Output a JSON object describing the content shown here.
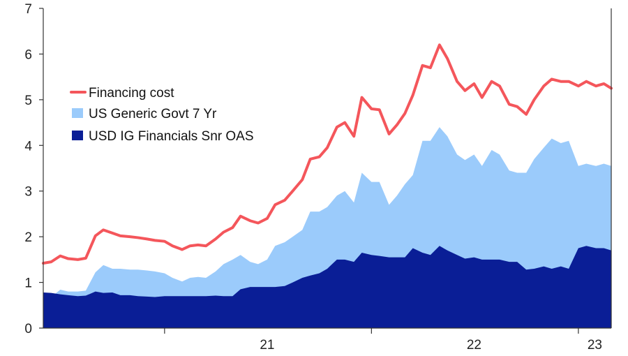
{
  "chart_data": {
    "type": "area",
    "title": "",
    "xlabel": "",
    "ylabel": "",
    "ylim": [
      0,
      7
    ],
    "xlim": [
      "2020-06-01",
      "2023-02-28"
    ],
    "y_ticks": [
      "0",
      "1",
      "2",
      "3",
      "4",
      "5",
      "6",
      "7"
    ],
    "x_ticks": [
      {
        "label": "21",
        "date": "2021-01-01"
      },
      {
        "label": "22",
        "date": "2022-01-01"
      },
      {
        "label": "23",
        "date": "2023-01-01"
      }
    ],
    "grid": false,
    "legend_position": "upper-left",
    "x": [
      "2020-06-01",
      "2020-06-15",
      "2020-07-01",
      "2020-07-15",
      "2020-08-01",
      "2020-08-15",
      "2020-09-01",
      "2020-09-15",
      "2020-10-01",
      "2020-10-15",
      "2020-11-01",
      "2020-11-15",
      "2020-12-01",
      "2020-12-15",
      "2021-01-01",
      "2021-01-15",
      "2021-02-01",
      "2021-02-15",
      "2021-03-01",
      "2021-03-15",
      "2021-04-01",
      "2021-04-15",
      "2021-05-01",
      "2021-05-15",
      "2021-06-01",
      "2021-06-15",
      "2021-07-01",
      "2021-07-15",
      "2021-08-01",
      "2021-08-15",
      "2021-09-01",
      "2021-09-15",
      "2021-10-01",
      "2021-10-15",
      "2021-11-01",
      "2021-11-15",
      "2021-12-01",
      "2021-12-15",
      "2022-01-01",
      "2022-01-15",
      "2022-02-01",
      "2022-02-15",
      "2022-03-01",
      "2022-03-15",
      "2022-04-01",
      "2022-04-15",
      "2022-05-01",
      "2022-05-15",
      "2022-06-01",
      "2022-06-15",
      "2022-07-01",
      "2022-07-15",
      "2022-08-01",
      "2022-08-15",
      "2022-09-01",
      "2022-09-15",
      "2022-10-01",
      "2022-10-15",
      "2022-11-01",
      "2022-11-15",
      "2022-12-01",
      "2022-12-15",
      "2023-01-01",
      "2023-01-15",
      "2023-02-01",
      "2023-02-15",
      "2023-02-28"
    ],
    "series": [
      {
        "name": "Financing cost",
        "kind": "line",
        "color": "#f4565b",
        "values": [
          1.42,
          1.45,
          1.58,
          1.52,
          1.5,
          1.53,
          2.02,
          2.15,
          2.08,
          2.02,
          2.0,
          1.98,
          1.95,
          1.92,
          1.9,
          1.8,
          1.72,
          1.8,
          1.82,
          1.8,
          1.95,
          2.1,
          2.2,
          2.45,
          2.35,
          2.3,
          2.4,
          2.7,
          2.8,
          3.0,
          3.25,
          3.7,
          3.75,
          3.95,
          4.4,
          4.5,
          4.2,
          5.05,
          4.8,
          4.78,
          4.25,
          4.45,
          4.7,
          5.1,
          5.75,
          5.7,
          6.2,
          5.9,
          5.4,
          5.2,
          5.35,
          5.05,
          5.4,
          5.3,
          4.9,
          4.85,
          4.68,
          5.0,
          5.3,
          5.45,
          5.4,
          5.4,
          5.3,
          5.4,
          5.3,
          5.35,
          5.25
        ]
      },
      {
        "name": "US Generic Govt 7 Yr",
        "kind": "area",
        "color": "#9bcbfb",
        "values": [
          0.64,
          0.68,
          0.84,
          0.8,
          0.8,
          0.82,
          1.22,
          1.38,
          1.3,
          1.3,
          1.28,
          1.28,
          1.26,
          1.24,
          1.2,
          1.1,
          1.02,
          1.1,
          1.12,
          1.1,
          1.24,
          1.4,
          1.5,
          1.6,
          1.45,
          1.4,
          1.5,
          1.8,
          1.88,
          2.0,
          2.15,
          2.55,
          2.55,
          2.65,
          2.9,
          3.0,
          2.75,
          3.4,
          3.2,
          3.2,
          2.7,
          2.9,
          3.15,
          3.35,
          4.1,
          4.1,
          4.4,
          4.2,
          3.8,
          3.68,
          3.8,
          3.55,
          3.9,
          3.8,
          3.45,
          3.4,
          3.4,
          3.7,
          3.95,
          4.15,
          4.05,
          4.1,
          3.55,
          3.6,
          3.55,
          3.6,
          3.55
        ]
      },
      {
        "name": "USD IG Financials Snr OAS",
        "kind": "area",
        "color": "#0a1e96",
        "values": [
          0.78,
          0.77,
          0.74,
          0.72,
          0.7,
          0.71,
          0.8,
          0.77,
          0.78,
          0.72,
          0.72,
          0.7,
          0.69,
          0.68,
          0.7,
          0.7,
          0.7,
          0.7,
          0.7,
          0.7,
          0.71,
          0.7,
          0.7,
          0.85,
          0.9,
          0.9,
          0.9,
          0.9,
          0.92,
          1.0,
          1.1,
          1.15,
          1.2,
          1.3,
          1.5,
          1.5,
          1.45,
          1.65,
          1.6,
          1.58,
          1.55,
          1.55,
          1.55,
          1.75,
          1.65,
          1.6,
          1.8,
          1.7,
          1.6,
          1.52,
          1.55,
          1.5,
          1.5,
          1.5,
          1.45,
          1.45,
          1.28,
          1.3,
          1.35,
          1.3,
          1.35,
          1.3,
          1.75,
          1.8,
          1.75,
          1.75,
          1.7
        ]
      }
    ]
  }
}
